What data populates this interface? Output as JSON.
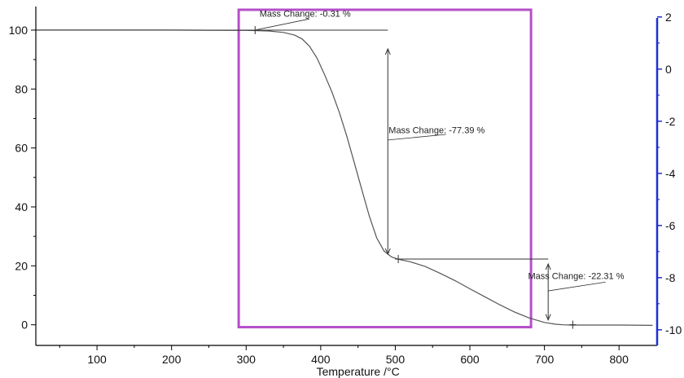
{
  "chart_data": {
    "type": "line",
    "title": "",
    "xlabel": "Temperature /°C",
    "ylabel": "",
    "y2label": "",
    "xlim": [
      18,
      850
    ],
    "ylim": [
      -7,
      108
    ],
    "y2lim": [
      -10.6,
      2.4
    ],
    "x_ticks": [
      100,
      200,
      300,
      400,
      500,
      600,
      700,
      800
    ],
    "y_ticks": [
      0,
      20,
      40,
      60,
      80,
      100
    ],
    "y2_ticks": [
      2,
      0,
      -2,
      -4,
      -6,
      -8,
      -10
    ],
    "grid": false,
    "legend": "none",
    "series": [
      {
        "x": [
          18,
          100,
          200,
          300,
          330,
          350,
          365,
          375,
          385,
          395,
          405,
          415,
          425,
          435,
          445,
          455,
          465,
          475,
          485,
          495,
          505,
          520,
          540,
          560,
          580,
          600,
          620,
          640,
          660,
          680,
          700,
          715,
          725,
          735,
          745,
          770,
          800,
          845
        ],
        "y": [
          100,
          100,
          100,
          99.9,
          99.7,
          99.2,
          98.3,
          97,
          94.5,
          90.5,
          85,
          79,
          72,
          64,
          55,
          46,
          37,
          29.5,
          25,
          23,
          22.2,
          21.4,
          19.8,
          17.5,
          15,
          12.2,
          9.5,
          6.8,
          4.3,
          2.3,
          0.8,
          0.2,
          0,
          -0.1,
          -0.1,
          -0.1,
          -0.1,
          -0.2
        ]
      }
    ],
    "annotations": [
      {
        "text": "Mass Change: -0.31 %",
        "x_from": 312,
        "y_from": 100,
        "x_to": 312,
        "y_to": 99.69,
        "text_x": 318,
        "text_y": 104.5
      },
      {
        "text": "Mass Change: -77.39 %",
        "x_from": 490,
        "y_from": 99.69,
        "x_to": 490,
        "y_to": 22.3,
        "text_x": 490,
        "text_y": 65
      },
      {
        "text": "Mass Change: -22.31 %",
        "x_from": 705,
        "y_from": 22.3,
        "x_to": 705,
        "y_to": 0,
        "text_x": 678,
        "text_y": 15.5
      }
    ],
    "highlight": {
      "x": [
        290,
        682
      ],
      "y": [
        -0.8,
        110
      ],
      "color": "#b44fc8"
    },
    "axis_color": "#000000",
    "y2_axis_color": "#1f2fd4",
    "line_color": "#555555",
    "annotation_color": "#333333"
  }
}
